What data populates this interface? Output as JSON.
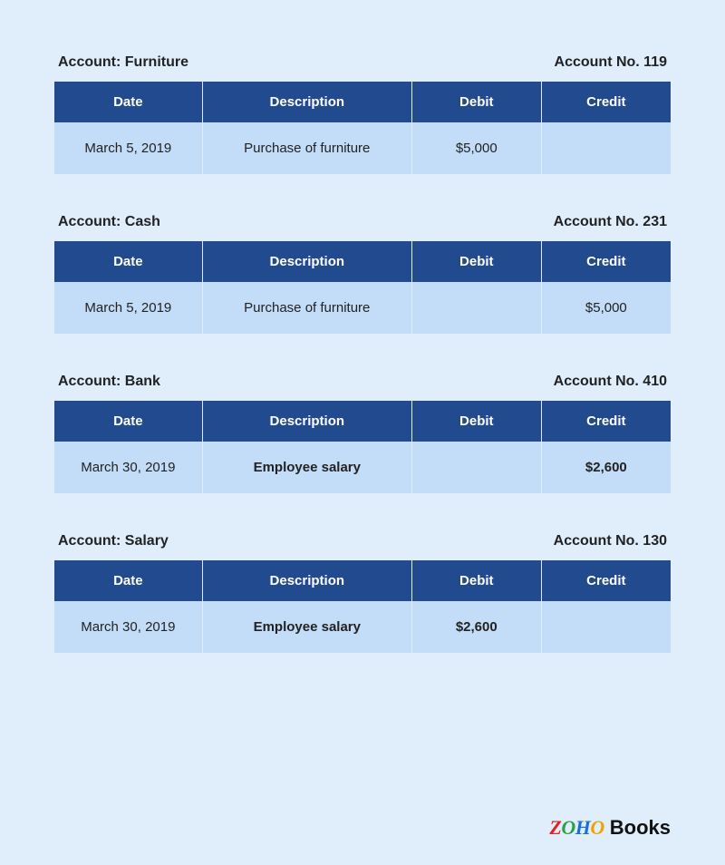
{
  "columns": {
    "date": "Date",
    "description": "Description",
    "debit": "Debit",
    "credit": "Credit"
  },
  "accountPrefix": "Account: ",
  "accountNoPrefix": "Account No. ",
  "ledgers": [
    {
      "name": "Furniture",
      "number": "119",
      "row": {
        "date": "March 5, 2019",
        "description": "Purchase of furniture",
        "debit": "$5,000",
        "credit": "",
        "bold": false
      }
    },
    {
      "name": "Cash",
      "number": "231",
      "row": {
        "date": "March 5, 2019",
        "description": "Purchase of furniture",
        "debit": "",
        "credit": "$5,000",
        "bold": false
      }
    },
    {
      "name": "Bank",
      "number": "410",
      "row": {
        "date": "March 30, 2019",
        "description": "Employee salary",
        "debit": "",
        "credit": "$2,600",
        "bold": true
      }
    },
    {
      "name": "Salary",
      "number": "130",
      "row": {
        "date": "March 30, 2019",
        "description": "Employee salary",
        "debit": "$2,600",
        "credit": "",
        "bold": true
      }
    }
  ],
  "brand": {
    "zoho": "ZOHO",
    "books": "Books"
  },
  "colors": {
    "page_bg": "#e0eefc",
    "header_bg": "#224a8f",
    "row_bg": "#c3ddf8",
    "header_text": "#ffffff",
    "body_text": "#222222"
  }
}
